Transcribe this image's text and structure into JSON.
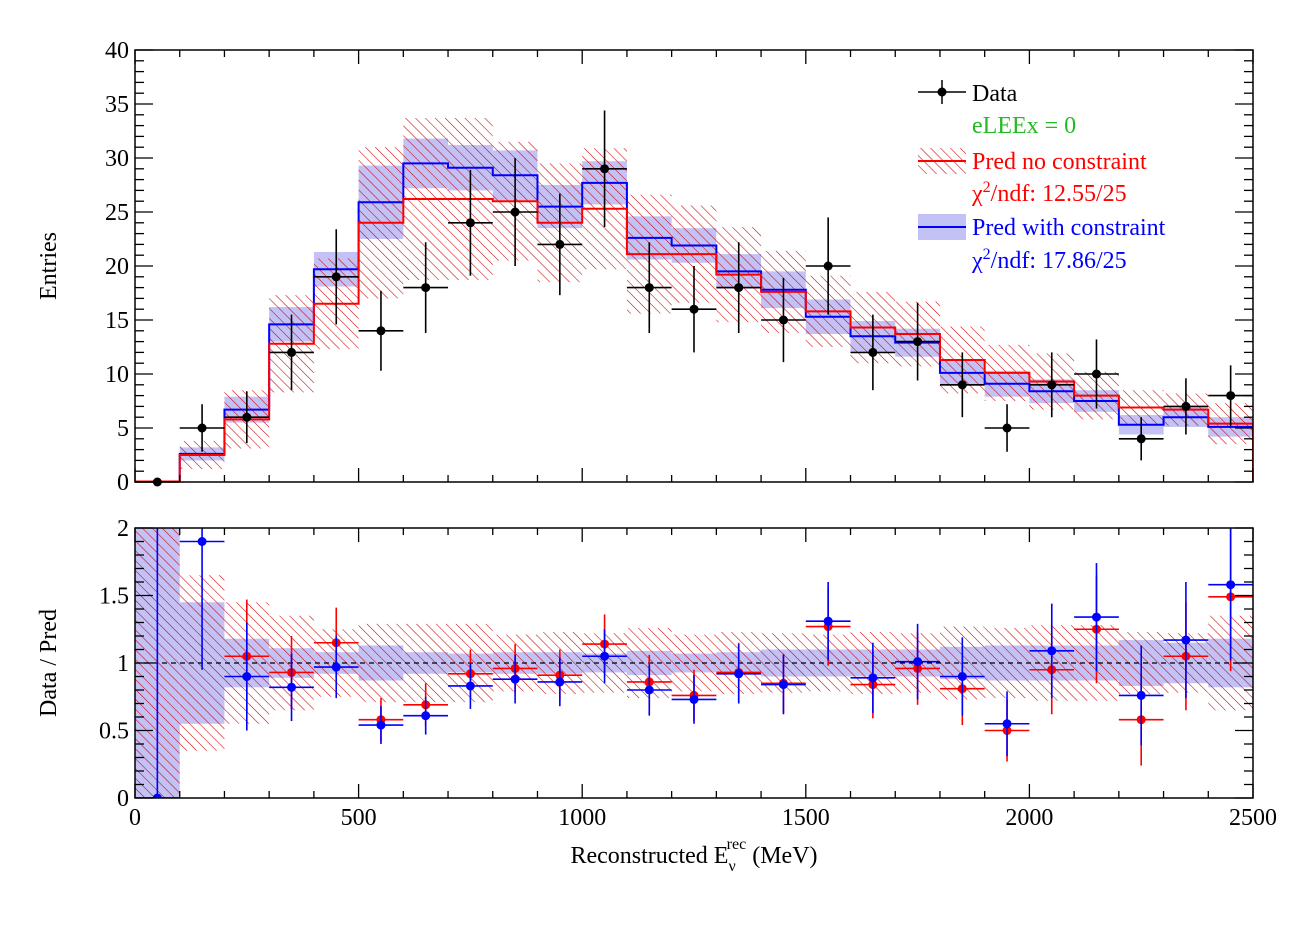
{
  "figure_title": "",
  "xaxis": {
    "label_main": "Reconstructed E",
    "label_sup": "rec",
    "label_sub": "ν",
    "label_unit": " (MeV)"
  },
  "legend": {
    "data": "Data",
    "elee": "eLEEx =  0",
    "pred_nc": "Pred no constraint",
    "chi2_nc_chi": "χ",
    "chi2_nc_sup": "2",
    "chi2_nc_rest": "/ndf: 12.55/25",
    "pred_wc": "Pred with constraint",
    "chi2_wc_chi": "χ",
    "chi2_wc_sup": "2",
    "chi2_wc_rest": "/ndf: 17.86/25"
  },
  "colors": {
    "data": "#000000",
    "no_constraint": "#ff0000",
    "with_constraint": "#0000ff",
    "band_wc": "#b7b7f5",
    "elee": "#22bb22"
  },
  "chart_data": [
    {
      "type": "histogram",
      "title": "",
      "ylabel": "Entries",
      "xlabel": "",
      "xlim": [
        0,
        2500
      ],
      "ylim": [
        0,
        40
      ],
      "xticks": [
        0,
        500,
        1000,
        1500,
        2000,
        2500
      ],
      "yticks": [
        0,
        5,
        10,
        15,
        20,
        25,
        30,
        35,
        40
      ],
      "bin_edges": [
        0,
        100,
        200,
        300,
        400,
        500,
        600,
        700,
        800,
        900,
        1000,
        1100,
        1200,
        1300,
        1400,
        1500,
        1600,
        1700,
        1800,
        1900,
        2000,
        2100,
        2200,
        2300,
        2400,
        2500
      ],
      "series": [
        {
          "name": "Pred no constraint",
          "values": [
            0.05,
            2.5,
            5.8,
            12.8,
            16.5,
            24.0,
            26.2,
            26.2,
            26.0,
            24.0,
            25.3,
            21.1,
            21.1,
            19.2,
            17.6,
            15.8,
            14.3,
            13.7,
            11.3,
            10.1,
            9.3,
            8.0,
            6.9,
            6.7,
            5.4
          ],
          "err": [
            0.05,
            1.3,
            2.7,
            4.5,
            4.2,
            7.0,
            7.5,
            7.5,
            5.5,
            5.5,
            5.6,
            5.5,
            4.5,
            4.4,
            3.8,
            3.3,
            3.3,
            3.0,
            3.1,
            2.6,
            2.6,
            2.2,
            1.6,
            1.5,
            1.9
          ]
        },
        {
          "name": "Pred with constraint",
          "values": [
            0.05,
            2.6,
            6.7,
            14.6,
            19.7,
            25.9,
            29.5,
            29.1,
            28.4,
            25.5,
            27.7,
            22.6,
            21.9,
            19.5,
            17.8,
            15.3,
            13.5,
            12.9,
            10.1,
            9.1,
            8.4,
            7.5,
            5.3,
            6.0,
            5.1
          ],
          "err": [
            0.05,
            0.6,
            1.2,
            1.6,
            1.6,
            3.4,
            2.3,
            2.1,
            2.3,
            2.0,
            2.0,
            2.0,
            1.6,
            1.6,
            1.7,
            1.6,
            1.4,
            1.3,
            1.2,
            1.2,
            1.1,
            1.0,
            0.9,
            0.9,
            0.9
          ]
        },
        {
          "name": "Data",
          "values": [
            0,
            5,
            6,
            12,
            19,
            14,
            18,
            24,
            25,
            22,
            29,
            18,
            16,
            18,
            15,
            20,
            12,
            13,
            9,
            5,
            9,
            10,
            4,
            7,
            8
          ],
          "err": [
            0,
            2.2,
            2.4,
            3.5,
            4.4,
            3.7,
            4.2,
            4.9,
            5.0,
            4.7,
            5.4,
            4.2,
            4.0,
            4.2,
            3.9,
            4.5,
            3.5,
            3.6,
            3.0,
            2.2,
            3.0,
            3.2,
            2.0,
            2.6,
            2.8
          ]
        }
      ]
    },
    {
      "type": "ratio",
      "title": "",
      "ylabel": "Data / Pred",
      "xlabel": "Reconstructed E_ν^rec (MeV)",
      "xlim": [
        0,
        2500
      ],
      "ylim": [
        0,
        2
      ],
      "xticks": [
        0,
        500,
        1000,
        1500,
        2000,
        2500
      ],
      "yticks": [
        0,
        0.5,
        1,
        1.5,
        2
      ],
      "x_centers": [
        50,
        150,
        250,
        350,
        450,
        550,
        650,
        750,
        850,
        950,
        1050,
        1150,
        1250,
        1350,
        1450,
        1550,
        1650,
        1750,
        1850,
        1950,
        2050,
        2150,
        2250,
        2350,
        2450
      ],
      "series": [
        {
          "name": "Pred no constraint (red)",
          "values": [
            null,
            null,
            1.05,
            0.93,
            1.15,
            0.58,
            0.69,
            0.92,
            0.96,
            0.91,
            1.14,
            0.86,
            0.76,
            0.93,
            0.85,
            1.27,
            0.84,
            0.96,
            0.81,
            0.5,
            0.95,
            1.25,
            0.58,
            1.05,
            1.49
          ],
          "err": [
            null,
            null,
            0.42,
            0.27,
            0.26,
            0.16,
            0.16,
            0.18,
            0.18,
            0.19,
            0.22,
            0.2,
            0.19,
            0.22,
            0.22,
            0.29,
            0.25,
            0.27,
            0.27,
            0.23,
            0.33,
            0.4,
            0.34,
            0.4,
            0.55
          ]
        },
        {
          "name": "Pred with constraint (blue)",
          "values": [
            0.0,
            1.9,
            0.9,
            0.82,
            0.97,
            0.54,
            0.61,
            0.83,
            0.88,
            0.86,
            1.05,
            0.8,
            0.73,
            0.92,
            0.84,
            1.31,
            0.89,
            1.01,
            0.9,
            0.55,
            1.09,
            1.34,
            0.76,
            1.17,
            1.58
          ],
          "err": [
            2.0,
            0.95,
            0.4,
            0.25,
            0.23,
            0.14,
            0.14,
            0.17,
            0.18,
            0.18,
            0.2,
            0.19,
            0.18,
            0.22,
            0.22,
            0.29,
            0.26,
            0.28,
            0.29,
            0.24,
            0.35,
            0.4,
            0.37,
            0.43,
            0.56
          ]
        }
      ],
      "band_no_constraint": [
        1.0,
        0.65,
        0.45,
        0.35,
        0.25,
        0.29,
        0.29,
        0.29,
        0.21,
        0.23,
        0.22,
        0.26,
        0.21,
        0.23,
        0.22,
        0.21,
        0.23,
        0.22,
        0.27,
        0.26,
        0.28,
        0.28,
        0.23,
        0.22,
        0.35
      ],
      "band_with_constraint": [
        1.0,
        0.45,
        0.18,
        0.11,
        0.08,
        0.13,
        0.08,
        0.07,
        0.08,
        0.08,
        0.07,
        0.09,
        0.07,
        0.08,
        0.1,
        0.1,
        0.1,
        0.1,
        0.12,
        0.13,
        0.13,
        0.13,
        0.17,
        0.15,
        0.18
      ],
      "reference_line": 1
    }
  ]
}
